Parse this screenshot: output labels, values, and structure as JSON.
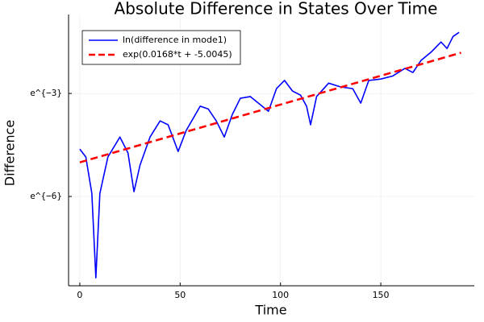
{
  "chart_data": {
    "type": "line",
    "title": "Absolute Difference in States Over Time",
    "xlabel": "Time",
    "ylabel": "Difference",
    "xlim": [
      -5.6,
      196.6
    ],
    "xticks": [
      0,
      50,
      100,
      150
    ],
    "ylim": [
      0.000184,
      0.4966
    ],
    "yscale": "log",
    "yticks": [
      {
        "value": 0.0024788,
        "label": "e^{−6}"
      },
      {
        "value": 0.049787,
        "label": "e^{−3}"
      }
    ],
    "grid": true,
    "legend": "top-left",
    "series": [
      {
        "name": "ln(difference in mode1)",
        "color": "#0000ff",
        "style": "solid",
        "x": [
          0,
          3,
          6,
          8,
          10,
          14,
          20,
          24,
          27,
          30,
          35,
          40,
          44,
          49,
          53,
          60,
          64,
          68,
          72,
          76,
          80,
          85,
          90,
          94,
          98,
          102,
          106,
          110,
          113,
          115,
          118,
          124,
          130,
          136,
          140,
          144,
          150,
          156,
          162,
          166,
          170,
          175,
          180,
          183,
          186,
          189
        ],
        "values": [
          0.00985,
          0.00783,
          0.00271,
          0.000232,
          0.00271,
          0.00783,
          0.014,
          0.00883,
          0.00285,
          0.00616,
          0.014,
          0.0224,
          0.02,
          0.00919,
          0.0169,
          0.0344,
          0.0317,
          0.0224,
          0.014,
          0.027,
          0.0433,
          0.0455,
          0.0358,
          0.0296,
          0.0573,
          0.0728,
          0.0534,
          0.0474,
          0.0344,
          0.02,
          0.0455,
          0.0672,
          0.0602,
          0.0573,
          0.0376,
          0.0728,
          0.0758,
          0.0829,
          0.1033,
          0.0916,
          0.13,
          0.1653,
          0.2231,
          0.1845,
          0.2618,
          0.2952
        ]
      },
      {
        "name": "exp(0.0168*t + -5.0045)",
        "color": "#ff0000",
        "style": "dash",
        "x": [
          0,
          95,
          190
        ],
        "values": [
          0.006703,
          0.03309,
          0.1632
        ]
      }
    ]
  }
}
